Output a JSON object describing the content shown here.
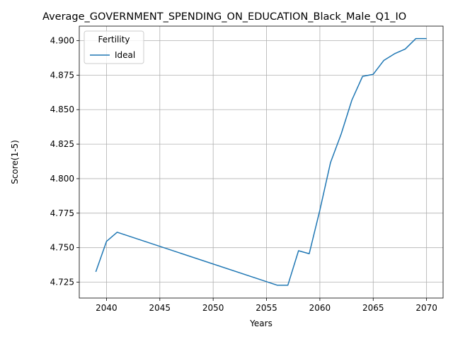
{
  "chart_data": {
    "type": "line",
    "title": "Average_GOVERNMENT_SPENDING_ON_EDUCATION_Black_Male_Q1_IO",
    "xlabel": "Years",
    "ylabel": "Score(1-5)",
    "xlim": [
      2037.45,
      2071.55
    ],
    "ylim": [
      4.7135,
      4.9105
    ],
    "xticks": [
      2040,
      2045,
      2050,
      2055,
      2060,
      2065,
      2070
    ],
    "xtick_labels": [
      "2040",
      "2045",
      "2050",
      "2055",
      "2060",
      "2065",
      "2070"
    ],
    "yticks": [
      4.725,
      4.75,
      4.775,
      4.8,
      4.825,
      4.85,
      4.875,
      4.9
    ],
    "ytick_labels": [
      "4.725",
      "4.750",
      "4.775",
      "4.800",
      "4.825",
      "4.850",
      "4.875",
      "4.900"
    ],
    "grid": true,
    "legend": {
      "title": "Fertility",
      "placement": "top-left"
    },
    "series": [
      {
        "name": "Ideal",
        "color": "#1f77b4",
        "x": [
          2039,
          2040,
          2041,
          2056,
          2057,
          2058,
          2059,
          2060,
          2061,
          2062,
          2063,
          2064,
          2065,
          2066,
          2067,
          2068,
          2069,
          2070
        ],
        "y": [
          4.7325,
          4.7545,
          4.7612,
          4.7228,
          4.7228,
          4.7478,
          4.7456,
          4.7772,
          4.8117,
          4.8324,
          4.8569,
          4.8741,
          4.8756,
          4.8857,
          4.8905,
          4.8939,
          4.9015,
          4.9015
        ]
      }
    ]
  }
}
